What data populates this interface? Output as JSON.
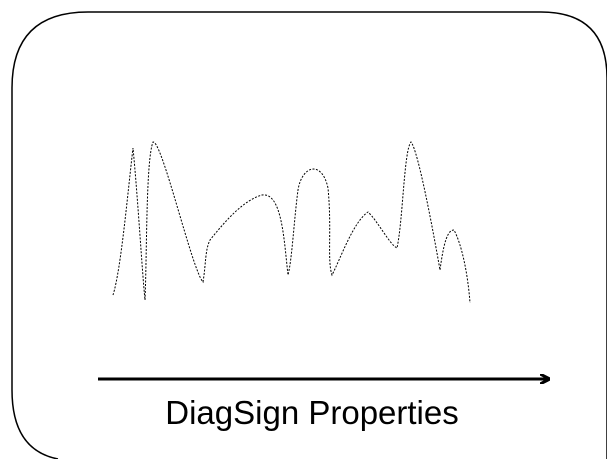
{
  "diagram": {
    "axis_label": "DiagSign Properties",
    "colors": {
      "frame": "#000000",
      "curve": "#000000",
      "arrow": "#000000",
      "background": "#ffffff"
    }
  }
}
